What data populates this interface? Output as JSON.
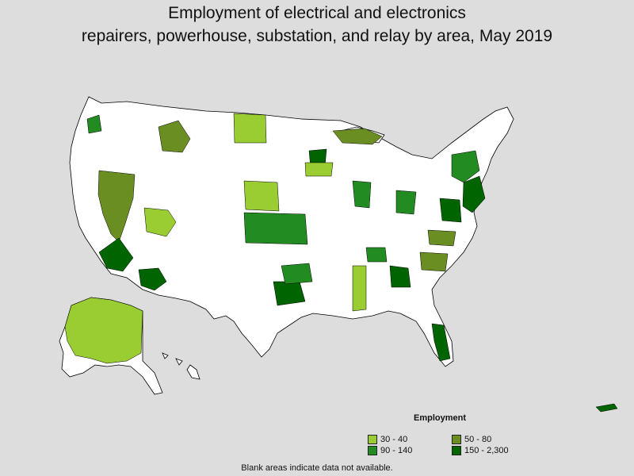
{
  "title_line1": "Employment of electrical and electronics",
  "title_line2": "repairers, powerhouse, substation, and relay by area, May 2019",
  "legend": {
    "title": "Employment",
    "items": [
      {
        "label": "30 - 40",
        "color": "#9acd32"
      },
      {
        "label": "50 - 80",
        "color": "#6b8e23"
      },
      {
        "label": "90 - 140",
        "color": "#228b22"
      },
      {
        "label": "150 - 2,300",
        "color": "#006400"
      }
    ]
  },
  "footnote": "Blank areas indicate data not available.",
  "colors": {
    "background": "#dddddd",
    "no_data": "#ffffff"
  }
}
